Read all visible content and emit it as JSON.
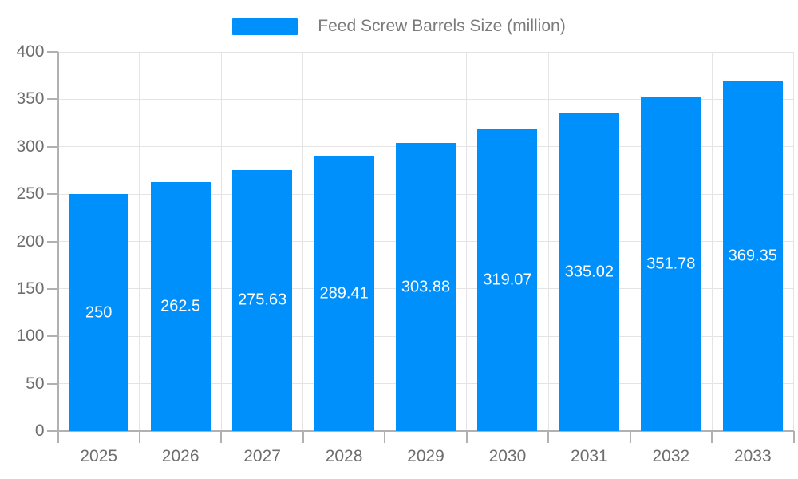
{
  "legend": {
    "label": "Feed Screw Barrels Size (million)"
  },
  "chart_data": {
    "type": "bar",
    "title": "Feed Screw Barrels Size (million)",
    "categories": [
      "2025",
      "2026",
      "2027",
      "2028",
      "2029",
      "2030",
      "2031",
      "2032",
      "2033"
    ],
    "series": [
      {
        "name": "Feed Screw Barrels Size (million)",
        "values": [
          250,
          262.5,
          275.63,
          289.41,
          303.88,
          319.07,
          335.02,
          351.78,
          369.35
        ],
        "value_labels": [
          "250",
          "262.5",
          "275.63",
          "289.41",
          "303.88",
          "319.07",
          "335.02",
          "351.78",
          "369.35"
        ]
      }
    ],
    "xlabel": "",
    "ylabel": "",
    "ylim": [
      0,
      400
    ],
    "y_ticks": [
      0,
      50,
      100,
      150,
      200,
      250,
      300,
      350,
      400
    ],
    "grid": true,
    "legend_position": "top",
    "colors": {
      "bar": "#0090FB",
      "axis_line": "#b1b1b1",
      "grid_line": "#e4e4e4",
      "tick_mark": "#b1b1b1",
      "tick_label": "#6e6e6e",
      "legend_text": "#7b7b7b",
      "data_label": "#ffffff",
      "background": "#ffffff"
    }
  }
}
